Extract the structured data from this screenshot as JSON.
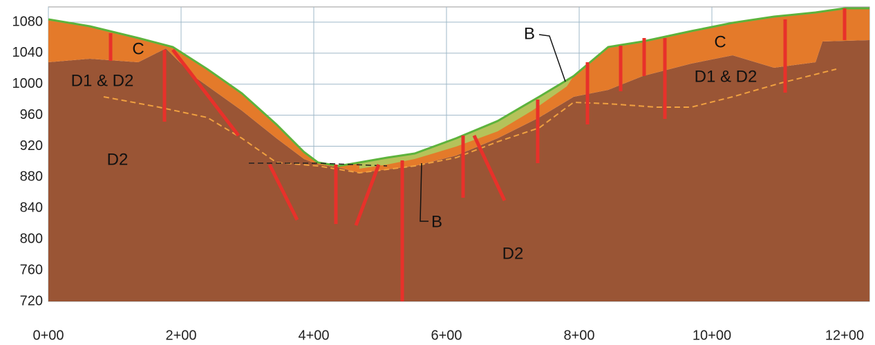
{
  "y_axis": {
    "ticks": [
      1080,
      1040,
      1000,
      960,
      920,
      880,
      840,
      800,
      760,
      720
    ]
  },
  "x_axis": {
    "ticks": [
      "0+00",
      "2+00",
      "4+00",
      "6+00",
      "8+00",
      "10+00",
      "12+00"
    ]
  },
  "zones": [
    {
      "label": "C"
    },
    {
      "label": "D1 & D2"
    },
    {
      "label": "D2"
    },
    {
      "label": "D2"
    },
    {
      "label": "C"
    },
    {
      "label": "D1 & D2"
    },
    {
      "label": "B"
    },
    {
      "label": "B"
    }
  ]
}
